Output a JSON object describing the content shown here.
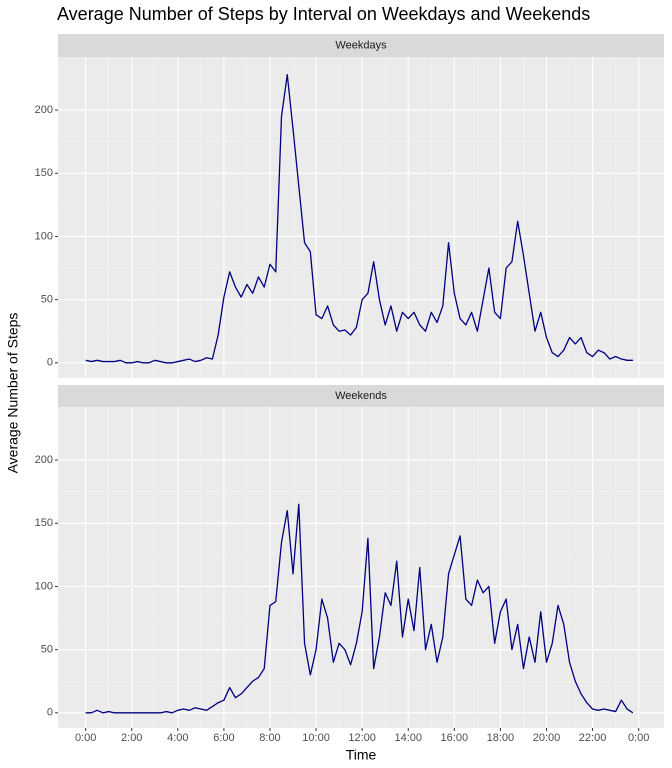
{
  "chart_data": {
    "type": "line",
    "title": "Average Number of Steps by Interval on Weekdays and Weekends",
    "xlabel": "Time",
    "ylabel": "Average Number of Steps",
    "color": "#000080",
    "grid": true,
    "xlim": [
      -1.2,
      25.1
    ],
    "ylim": [
      -12,
      242
    ],
    "xticks": [
      {
        "value": 0,
        "label": "0:00"
      },
      {
        "value": 2,
        "label": "2:00"
      },
      {
        "value": 4,
        "label": "4:00"
      },
      {
        "value": 6,
        "label": "6:00"
      },
      {
        "value": 8,
        "label": "8:00"
      },
      {
        "value": 10,
        "label": "10:00"
      },
      {
        "value": 12,
        "label": "12:00"
      },
      {
        "value": 14,
        "label": "14:00"
      },
      {
        "value": 16,
        "label": "16:00"
      },
      {
        "value": 18,
        "label": "18:00"
      },
      {
        "value": 20,
        "label": "20:00"
      },
      {
        "value": 22,
        "label": "22:00"
      },
      {
        "value": 24,
        "label": "0:00"
      }
    ],
    "yticks": [
      0,
      50,
      100,
      150,
      200
    ],
    "x": [
      0,
      0.25,
      0.5,
      0.75,
      1,
      1.25,
      1.5,
      1.75,
      2,
      2.25,
      2.5,
      2.75,
      3,
      3.25,
      3.5,
      3.75,
      4,
      4.25,
      4.5,
      4.75,
      5,
      5.25,
      5.5,
      5.75,
      6,
      6.25,
      6.5,
      6.75,
      7,
      7.25,
      7.5,
      7.75,
      8,
      8.25,
      8.5,
      8.75,
      9,
      9.25,
      9.5,
      9.75,
      10,
      10.25,
      10.5,
      10.75,
      11,
      11.25,
      11.5,
      11.75,
      12,
      12.25,
      12.5,
      12.75,
      13,
      13.25,
      13.5,
      13.75,
      14,
      14.25,
      14.5,
      14.75,
      15,
      15.25,
      15.5,
      15.75,
      16,
      16.25,
      16.5,
      16.75,
      17,
      17.25,
      17.5,
      17.75,
      18,
      18.25,
      18.5,
      18.75,
      19,
      19.25,
      19.5,
      19.75,
      20,
      20.25,
      20.5,
      20.75,
      21,
      21.25,
      21.5,
      21.75,
      22,
      22.25,
      22.5,
      22.75,
      23,
      23.25,
      23.5,
      23.75
    ],
    "series": [
      {
        "name": "Weekdays",
        "values": [
          2,
          1,
          2,
          1,
          1,
          1,
          2,
          0,
          0,
          1,
          0,
          0,
          2,
          1,
          0,
          0,
          1,
          2,
          3,
          1,
          2,
          4,
          3,
          22,
          52,
          72,
          60,
          52,
          62,
          55,
          68,
          60,
          78,
          72,
          195,
          228,
          185,
          140,
          95,
          88,
          38,
          35,
          45,
          30,
          25,
          26,
          22,
          28,
          50,
          55,
          80,
          50,
          30,
          45,
          25,
          40,
          35,
          40,
          30,
          25,
          40,
          32,
          45,
          95,
          55,
          35,
          30,
          40,
          25,
          50,
          75,
          40,
          35,
          75,
          80,
          112,
          85,
          55,
          25,
          40,
          20,
          8,
          5,
          10,
          20,
          15,
          20,
          8,
          5,
          10,
          8,
          3,
          5,
          3,
          2,
          2
        ]
      },
      {
        "name": "Weekends",
        "values": [
          0,
          0,
          2,
          0,
          1,
          0,
          0,
          0,
          0,
          0,
          0,
          0,
          0,
          0,
          1,
          0,
          2,
          3,
          2,
          4,
          3,
          2,
          5,
          8,
          10,
          20,
          12,
          15,
          20,
          25,
          28,
          35,
          85,
          88,
          135,
          160,
          110,
          165,
          55,
          30,
          50,
          90,
          75,
          40,
          55,
          50,
          38,
          55,
          80,
          138,
          35,
          60,
          95,
          85,
          120,
          60,
          90,
          65,
          115,
          50,
          70,
          40,
          60,
          110,
          125,
          140,
          90,
          85,
          105,
          95,
          100,
          55,
          80,
          90,
          50,
          70,
          35,
          60,
          40,
          80,
          40,
          55,
          85,
          70,
          40,
          25,
          15,
          8,
          3,
          2,
          3,
          2,
          1,
          10,
          3,
          0
        ]
      }
    ]
  }
}
